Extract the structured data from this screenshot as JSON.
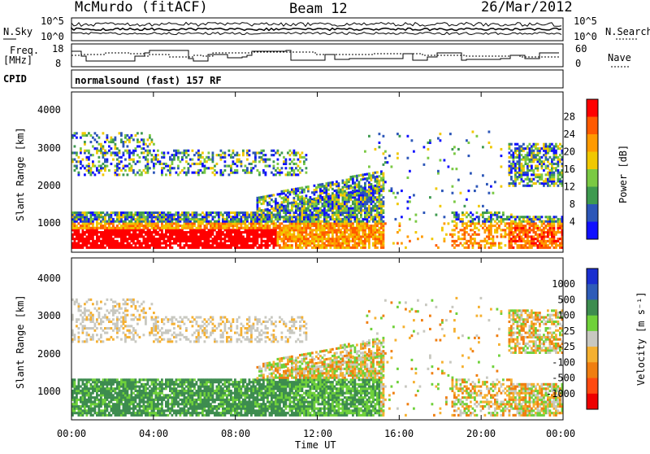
{
  "header": {
    "station": "McMurdo (fitACF)",
    "beam": "Beam 12",
    "date": "26/Mar/2012"
  },
  "top_panels": {
    "noise_left_label": "N.Sky",
    "noise_right_label": "N.Search",
    "noise_ticks_left": [
      "10^5",
      "10^0"
    ],
    "noise_ticks_right": [
      "10^5",
      "10^0"
    ],
    "freq_label_line1": "Freq.",
    "freq_label_line2": "[MHz]",
    "freq_ticks": [
      "18",
      "8"
    ],
    "nave_label": "Nave",
    "nave_ticks": [
      "60",
      "0"
    ],
    "cpid_label": "CPID",
    "cpid_text": "normalsound (fast) 157 RF"
  },
  "chart_data": [
    {
      "type": "heatmap",
      "title": "",
      "ylabel": "Slant Range [km]",
      "xlabel": "Time UT",
      "ylim": [
        200,
        4600
      ],
      "yticks": [
        "4000",
        "3000",
        "2000",
        "1000"
      ],
      "colorbar_label": "Power [dB]",
      "colorbar_ticks": [
        "28",
        "24",
        "20",
        "16",
        "12",
        "8",
        "4"
      ],
      "colorbar_colors": [
        "#ff0000",
        "#ff5a00",
        "#ff9a00",
        "#f0c800",
        "#7ac943",
        "#3e9a4f",
        "#2c56b8",
        "#1010ff"
      ]
    },
    {
      "type": "heatmap",
      "title": "",
      "ylabel": "Slant Range [km]",
      "xlabel": "Time UT",
      "ylim": [
        200,
        4600
      ],
      "yticks": [
        "4000",
        "3000",
        "2000",
        "1000"
      ],
      "colorbar_label": "Velocity [m s⁻¹]",
      "colorbar_ticks": [
        "1000",
        "500",
        "100",
        "25",
        "-25",
        "-100",
        "-500",
        "-1000"
      ],
      "colorbar_colors": [
        "#1a2fd0",
        "#2e5cb8",
        "#3d8c4f",
        "#6fd13a",
        "#c8c8c0",
        "#f5b030",
        "#f07e10",
        "#ff4a10",
        "#ee0000"
      ]
    }
  ],
  "xaxis": {
    "ticks": [
      "00:00",
      "04:00",
      "08:00",
      "12:00",
      "16:00",
      "20:00",
      "00:00"
    ],
    "label": "Time UT"
  }
}
